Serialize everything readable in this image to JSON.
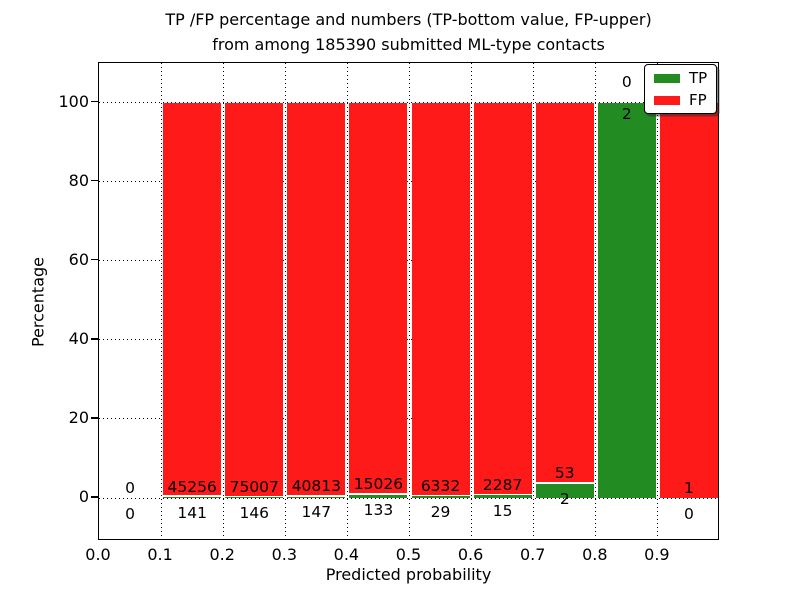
{
  "title": {
    "line1": "TP /FP percentage and numbers (TP-bottom value, FP-upper)",
    "line2": "from among 185390 submitted ML-type contacts"
  },
  "axes": {
    "ylabel": "Percentage",
    "xlabel": "Predicted probability",
    "ytick_labels": [
      "0",
      "20",
      "40",
      "60",
      "80",
      "100"
    ],
    "ytick_values": [
      0,
      20,
      40,
      60,
      80,
      100
    ],
    "xtick_labels": [
      "0.0",
      "0.1",
      "0.2",
      "0.3",
      "0.4",
      "0.5",
      "0.6",
      "0.7",
      "0.8",
      "0.9"
    ],
    "xtick_values": [
      0.0,
      0.1,
      0.2,
      0.3,
      0.4,
      0.5,
      0.6,
      0.7,
      0.8,
      0.9
    ]
  },
  "legend": {
    "items": [
      {
        "label": "TP",
        "color": "#228B22"
      },
      {
        "label": "FP",
        "color": "#FF1A1A"
      }
    ],
    "position": "upper right"
  },
  "colors": {
    "tp": "#228B22",
    "fp": "#FF1A1A",
    "bar_edge": "#ffffff",
    "grid": "#000000",
    "text": "#000000",
    "background": "#ffffff"
  },
  "chart_data": {
    "type": "bar",
    "stacked": true,
    "normalized_to_percent_per_bin": true,
    "title": "TP /FP percentage and numbers (TP-bottom value, FP-upper) from among 185390 submitted ML-type contacts",
    "xlabel": "Predicted probability",
    "ylabel": "Percentage",
    "xlim": [
      0.0,
      1.0
    ],
    "ylim": [
      -10.87,
      110
    ],
    "grid": "dotted",
    "legend_position": "upper right",
    "total_contacts": 185390,
    "bin_edges": [
      0.0,
      0.1,
      0.2,
      0.3,
      0.4,
      0.5,
      0.6,
      0.7,
      0.8,
      0.9,
      1.0
    ],
    "categories": [
      "0.0-0.1",
      "0.1-0.2",
      "0.2-0.3",
      "0.3-0.4",
      "0.4-0.5",
      "0.5-0.6",
      "0.6-0.7",
      "0.7-0.8",
      "0.8-0.9",
      "0.9-1.0"
    ],
    "series": [
      {
        "name": "TP",
        "color": "#228B22",
        "counts": [
          0,
          141,
          146,
          147,
          133,
          29,
          15,
          2,
          2,
          0
        ]
      },
      {
        "name": "FP",
        "color": "#FF1A1A",
        "counts": [
          0,
          45256,
          75007,
          40813,
          15026,
          6332,
          2287,
          53,
          0,
          1
        ]
      }
    ],
    "tp_percent_per_bin": [
      0,
      0.31,
      0.19,
      0.36,
      0.88,
      0.46,
      0.65,
      3.64,
      100,
      0
    ]
  }
}
